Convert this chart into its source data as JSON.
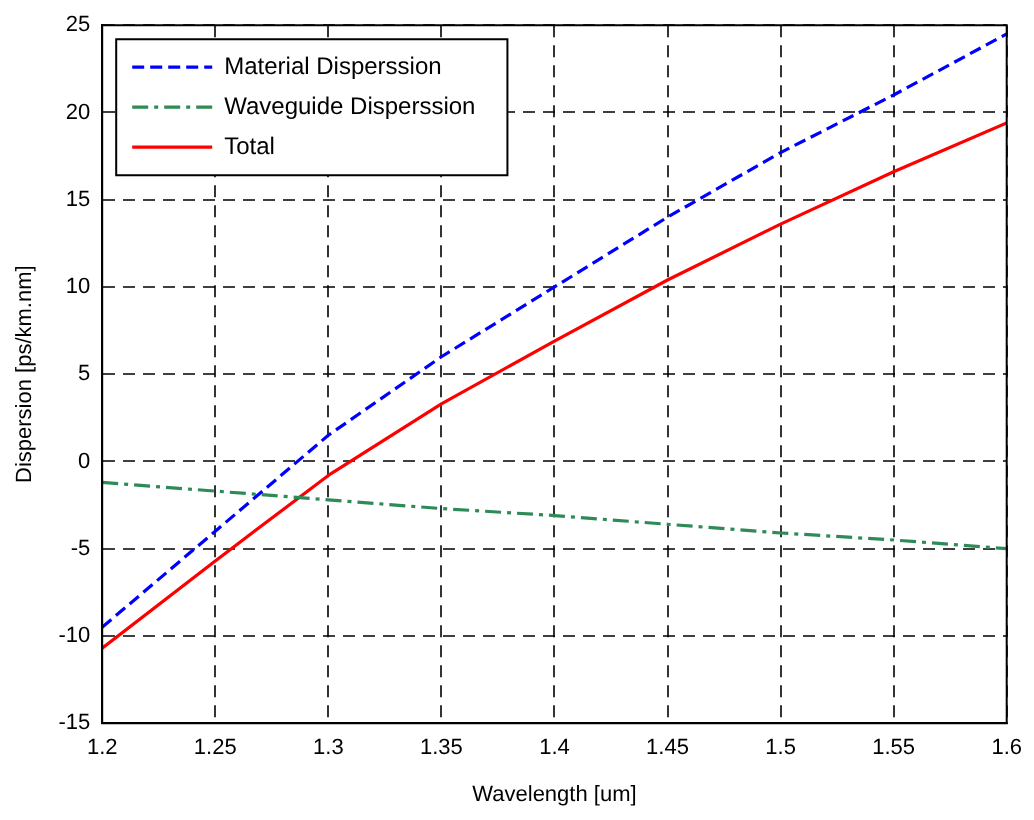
{
  "chart_data": {
    "type": "line",
    "xlabel": "Wavelength [um]",
    "ylabel": "Dispersion [ps/km.nm]",
    "x": [
      1.2,
      1.25,
      1.3,
      1.35,
      1.4,
      1.45,
      1.5,
      1.55,
      1.6
    ],
    "series": [
      {
        "name": "Material Disperssion",
        "color": "#0000ff",
        "line_style": "dashed",
        "values": [
          -9.5,
          -4,
          1.5,
          6,
          10,
          14,
          17.7,
          21,
          24.5
        ]
      },
      {
        "name": "Waveguide Disperssion",
        "color": "#2e8b57",
        "line_style": "dashdot",
        "values": [
          -1.2,
          -1.7,
          -2.2,
          -2.7,
          -3.1,
          -3.6,
          -4.1,
          -4.5,
          -5
        ]
      },
      {
        "name": "Total",
        "color": "#ff0000",
        "line_style": "solid",
        "values": [
          -10.7,
          -5.7,
          -0.8,
          3.3,
          6.9,
          10.4,
          13.6,
          16.6,
          19.4
        ]
      }
    ],
    "xlim": [
      1.2,
      1.6
    ],
    "xticks": [
      1.2,
      1.25,
      1.3,
      1.35,
      1.4,
      1.45,
      1.5,
      1.55,
      1.6
    ],
    "ylim": [
      -15,
      25
    ],
    "yticks": [
      -15,
      -10,
      -5,
      0,
      5,
      10,
      15,
      20,
      25
    ],
    "grid": true,
    "legend": "top left",
    "marker": "none"
  }
}
